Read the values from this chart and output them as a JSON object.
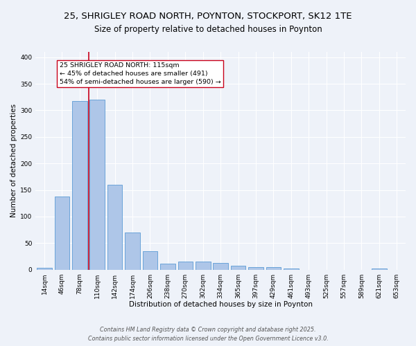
{
  "title1": "25, SHRIGLEY ROAD NORTH, POYNTON, STOCKPORT, SK12 1TE",
  "title2": "Size of property relative to detached houses in Poynton",
  "xlabel": "Distribution of detached houses by size in Poynton",
  "ylabel": "Number of detached properties",
  "bar_labels": [
    "14sqm",
    "46sqm",
    "78sqm",
    "110sqm",
    "142sqm",
    "174sqm",
    "206sqm",
    "238sqm",
    "270sqm",
    "302sqm",
    "334sqm",
    "365sqm",
    "397sqm",
    "429sqm",
    "461sqm",
    "493sqm",
    "525sqm",
    "557sqm",
    "589sqm",
    "621sqm",
    "653sqm"
  ],
  "bar_values": [
    4,
    138,
    318,
    320,
    160,
    70,
    35,
    11,
    15,
    15,
    12,
    7,
    5,
    5,
    2,
    0,
    0,
    0,
    0,
    2,
    0
  ],
  "bar_color": "#aec6e8",
  "bar_edge_color": "#5b9bd5",
  "highlight_index": 3,
  "highlight_color": "#c8001a",
  "annotation_text": "25 SHRIGLEY ROAD NORTH: 115sqm\n← 45% of detached houses are smaller (491)\n54% of semi-detached houses are larger (590) →",
  "annotation_box_color": "white",
  "annotation_box_edge_color": "#c8001a",
  "ylim": [
    0,
    410
  ],
  "yticks": [
    0,
    50,
    100,
    150,
    200,
    250,
    300,
    350,
    400
  ],
  "footer1": "Contains HM Land Registry data © Crown copyright and database right 2025.",
  "footer2": "Contains public sector information licensed under the Open Government Licence v3.0.",
  "bg_color": "#eef2f9",
  "grid_color": "white",
  "title_fontsize": 9.5,
  "subtitle_fontsize": 8.5,
  "annotation_fontsize": 6.8,
  "tick_fontsize": 6.5,
  "axis_label_fontsize": 7.5,
  "footer_fontsize": 5.8
}
